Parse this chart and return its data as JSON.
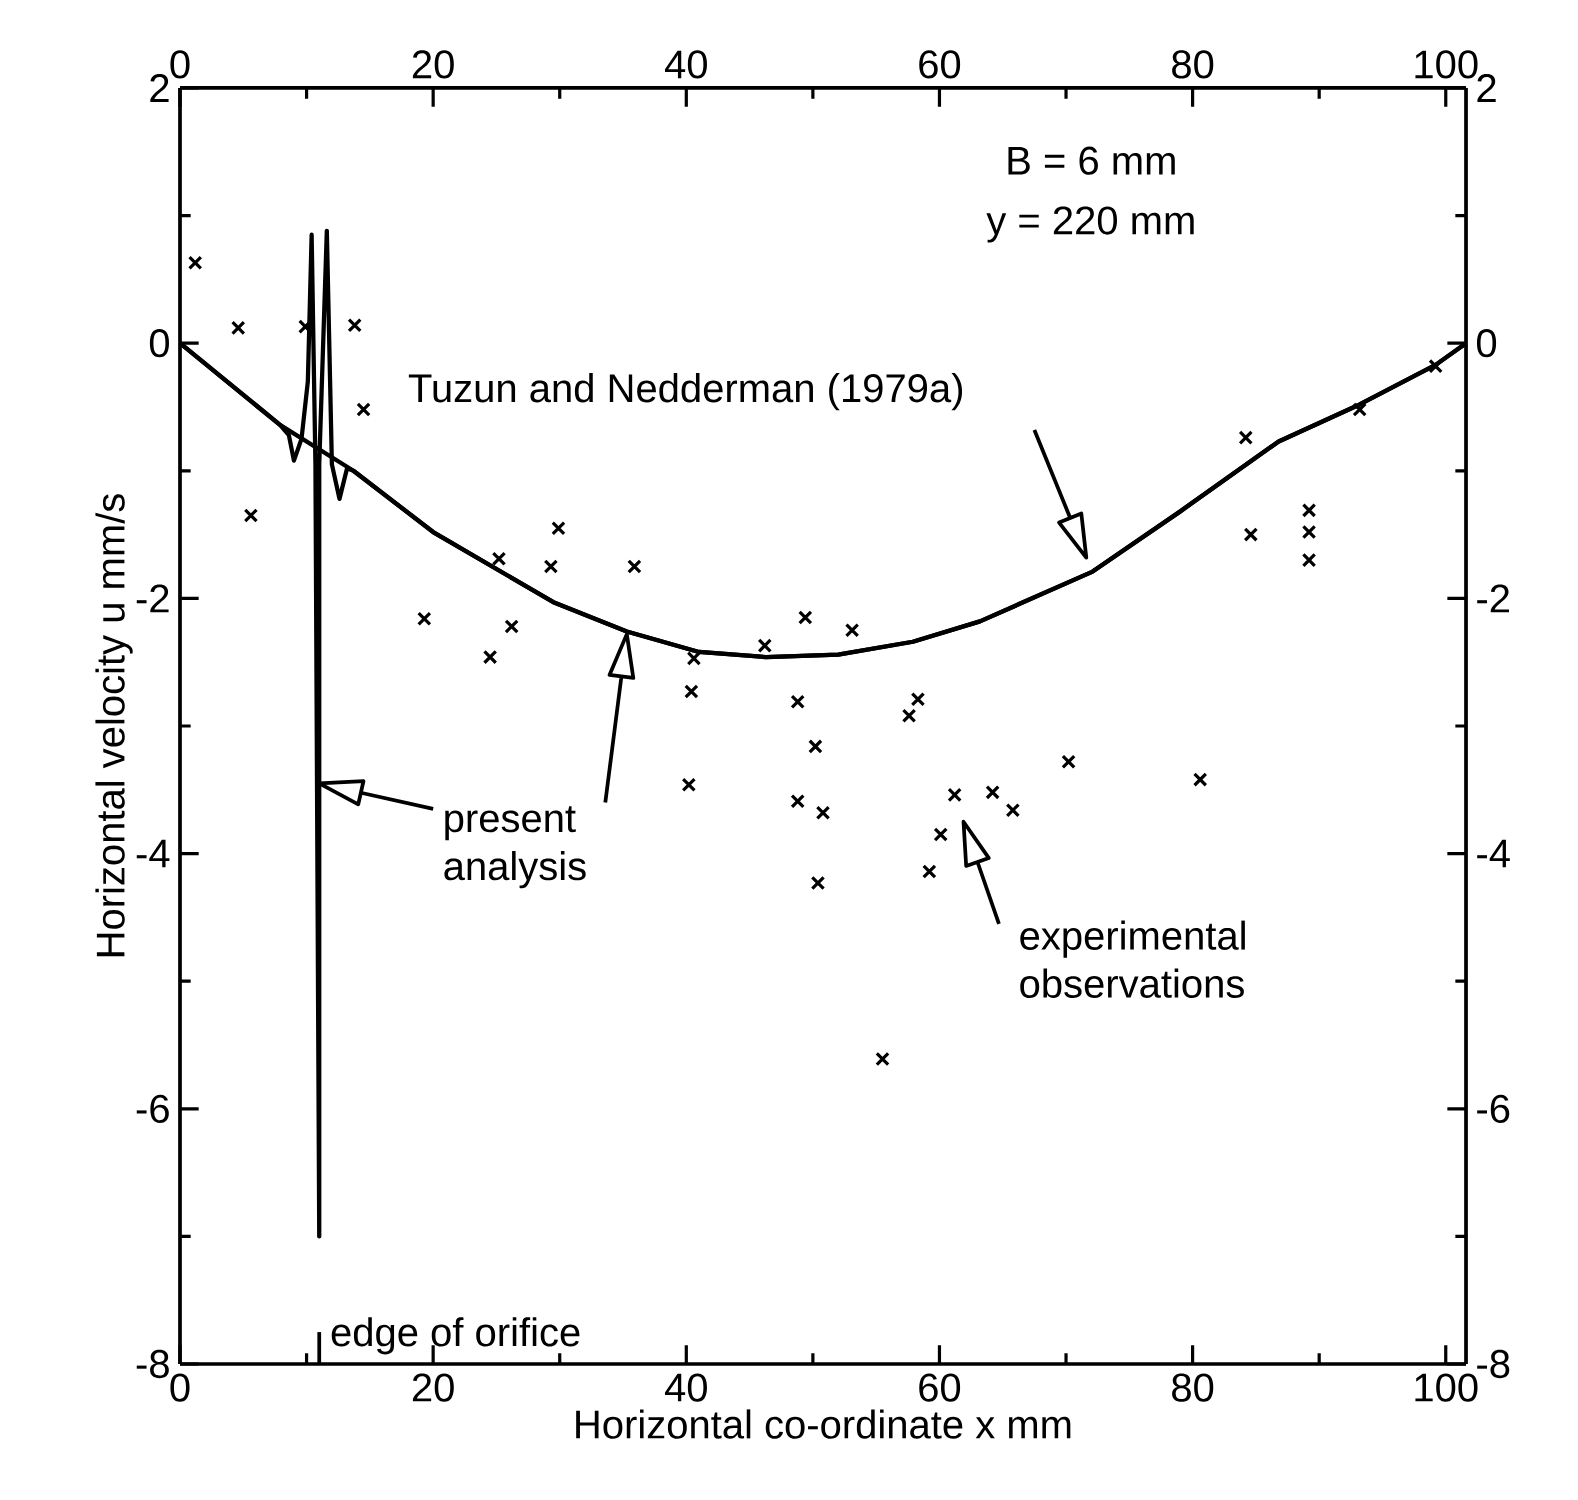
{
  "chart_data": {
    "type": "line",
    "xlabel": "Horizontal co-ordinate x mm",
    "ylabel": "Horizontal velocity u mm/s",
    "xlim": [
      0,
      101.6
    ],
    "ylim": [
      -8,
      2
    ],
    "xticks": [
      0,
      20,
      40,
      60,
      80,
      100
    ],
    "yticks": [
      -8,
      -6,
      -4,
      -2,
      0,
      2
    ],
    "x2lim": [
      0,
      101.6
    ],
    "x2ticks": [
      0,
      20,
      40,
      60,
      80,
      100
    ],
    "y2lim": [
      -8,
      2
    ],
    "y2ticks": [
      -8,
      -6,
      -4,
      -2,
      0,
      2
    ],
    "series": [
      {
        "color": "#000000",
        "line_style": "solid",
        "x": [
          0,
          7.9,
          13.7,
          20,
          29.5,
          35.3,
          41,
          46.3,
          52,
          57.9,
          63.2,
          72.1,
          79,
          86.8,
          93.2,
          99.2,
          101.6
        ],
        "values": [
          0,
          -0.64,
          -1.0,
          -1.48,
          -2.03,
          -2.26,
          -2.42,
          -2.46,
          -2.44,
          -2.34,
          -2.18,
          -1.79,
          -1.32,
          -0.77,
          -0.48,
          -0.17,
          0
        ]
      },
      {
        "color": "#000000",
        "line_style": "solid",
        "x": [
          0,
          7.9,
          8.6,
          9.0,
          9.6,
          10.1,
          10.4,
          10.7,
          11.0,
          11.0,
          11.6,
          12.0,
          12.6,
          13.2,
          13.7,
          20,
          29.5,
          35.3,
          41,
          46.3,
          52,
          57.9,
          63.2,
          72.1,
          79,
          86.8,
          93.2,
          99.2,
          101.6
        ],
        "values": [
          0,
          -0.64,
          -0.72,
          -0.92,
          -0.75,
          -0.3,
          0.85,
          -0.95,
          -7.0,
          -0.95,
          0.88,
          -0.95,
          -1.22,
          -0.98,
          -1.0,
          -1.48,
          -2.03,
          -2.26,
          -2.42,
          -2.46,
          -2.44,
          -2.34,
          -2.18,
          -1.79,
          -1.32,
          -0.77,
          -0.48,
          -0.17,
          0
        ]
      },
      {
        "type": "scatter",
        "color": "#000000",
        "marker": "cross",
        "x": [
          1.2,
          4.6,
          5.6,
          9.9,
          13.8,
          14.5,
          19.3,
          24.5,
          25.2,
          26.2,
          29.3,
          29.9,
          35.9,
          40.2,
          40.4,
          40.6,
          46.2,
          48.8,
          48.8,
          49.4,
          50.2,
          50.4,
          50.8,
          53.1,
          55.5,
          57.6,
          58.3,
          59.2,
          60.1,
          61.2,
          64.2,
          65.8,
          70.2,
          80.6,
          84.2,
          84.6,
          89.2,
          89.2,
          89.2,
          93.2,
          99.2
        ],
        "values": [
          0.63,
          0.12,
          -1.35,
          0.13,
          0.14,
          -0.52,
          -2.16,
          -2.46,
          -1.69,
          -2.22,
          -1.75,
          -1.45,
          -1.75,
          -3.46,
          -2.73,
          -2.47,
          -2.37,
          -2.81,
          -3.59,
          -2.15,
          -3.16,
          -4.23,
          -3.68,
          -2.25,
          -5.61,
          -2.92,
          -2.79,
          -4.14,
          -3.85,
          -3.54,
          -3.52,
          -3.66,
          -3.28,
          -3.42,
          -0.74,
          -1.5,
          -1.31,
          -1.48,
          -1.7,
          -0.52,
          -0.18
        ]
      }
    ],
    "annotations": [
      "B = 6 mm",
      "y = 220 mm",
      "Tuzun and Nedderman (1979a)",
      "present analysis",
      "experimental observations",
      "edge of orifice"
    ]
  }
}
